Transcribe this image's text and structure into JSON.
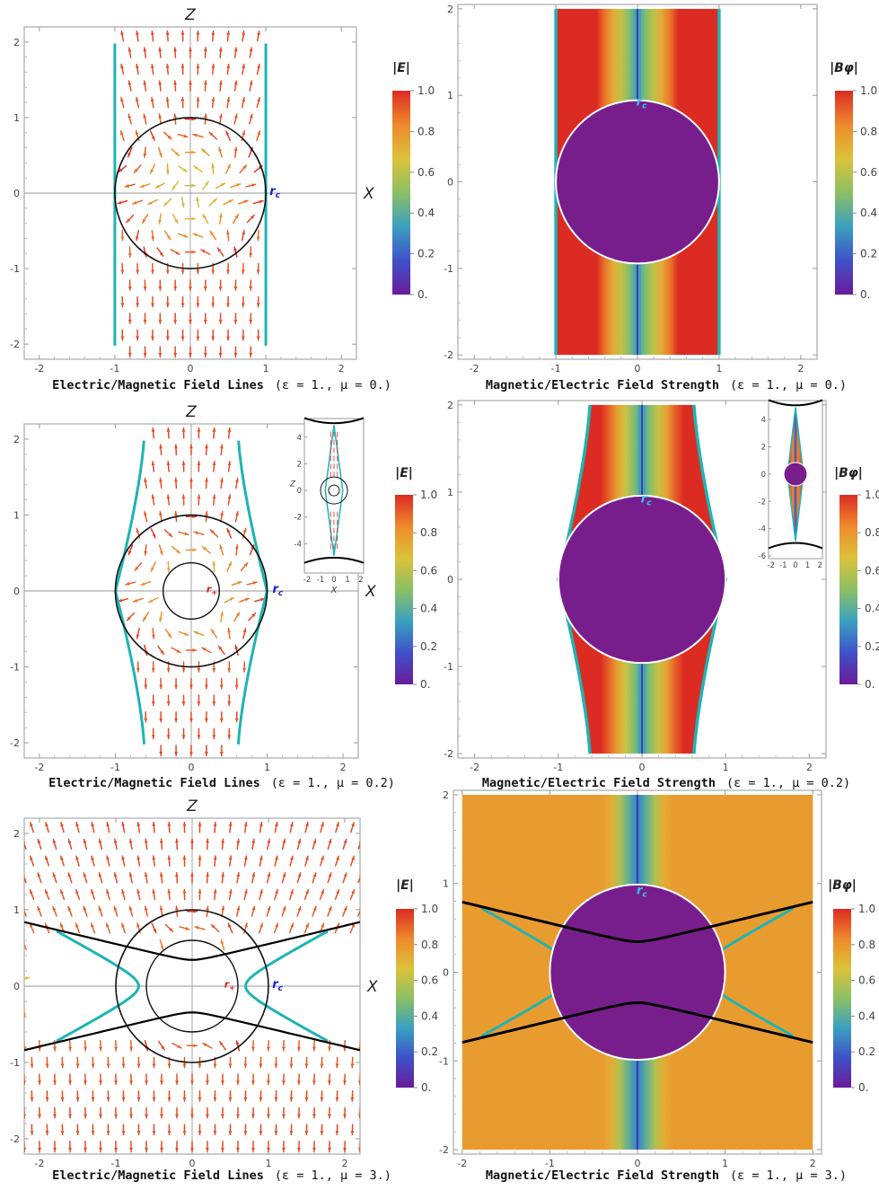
{
  "figure": {
    "panels": [
      {
        "id": "row1-left",
        "kind": "field-lines",
        "epsilon": "1.",
        "mu": "0.",
        "caption": {
          "text": "Electric/Magnetic Field Lines",
          "params": "(ε = 1.,  μ = 0.)"
        },
        "axis_top_label": "Z",
        "axis_right_label": "X",
        "rc_label": "r_c",
        "colorbar": {
          "title": "|E|",
          "ticks": [
            "1.0",
            "0.8",
            "0.6",
            "0.4",
            "0.2",
            "0."
          ]
        }
      },
      {
        "id": "row1-right",
        "kind": "field-strength",
        "epsilon": "1.",
        "mu": "0.",
        "caption": {
          "text": "Magnetic/Electric Field Strength",
          "params": "(ε = 1.,  μ = 0.)"
        },
        "rc_label": "r_c",
        "colorbar": {
          "title": "|Bφ|",
          "ticks": [
            "1.0",
            "0.8",
            "0.6",
            "0.4",
            "0.2",
            "0."
          ]
        }
      },
      {
        "id": "row2-left",
        "kind": "field-lines",
        "epsilon": "1.",
        "mu": "0.2",
        "caption": {
          "text": "Electric/Magnetic Field Lines",
          "params": "(ε = 1.,  μ = 0.2)"
        },
        "axis_top_label": "Z",
        "axis_right_label": "X",
        "rc_label": "r_c",
        "rplus_label": "r_+",
        "inset": {
          "xlabel": "X",
          "ylabel": "Z",
          "xticks": [
            "-2",
            "-1",
            "0",
            "1",
            "2"
          ],
          "yticks": [
            "4",
            "2",
            "0",
            "-2",
            "-4"
          ]
        },
        "colorbar": {
          "title": "|E|",
          "ticks": [
            "1.0",
            "0.8",
            "0.6",
            "0.4",
            "0.2",
            "0."
          ]
        }
      },
      {
        "id": "row2-right",
        "kind": "field-strength",
        "epsilon": "1.",
        "mu": "0.2",
        "caption": {
          "text": "Magnetic/Electric Field Strength",
          "params": "(ε = 1.,  μ = 0.2)"
        },
        "rc_label": "r_c",
        "inset": {
          "xticks": [
            "-2",
            "-1",
            "0",
            "1",
            "2"
          ],
          "yticks": [
            "4",
            "2",
            "0",
            "-2",
            "-4",
            "-6"
          ]
        },
        "colorbar": {
          "title": "|Bφ|",
          "ticks": [
            "1.0",
            "0.8",
            "0.6",
            "0.4",
            "0.2",
            "0."
          ]
        }
      },
      {
        "id": "row3-left",
        "kind": "field-lines",
        "epsilon": "1.",
        "mu": "3.",
        "caption": {
          "text": "Electric/Magnetic Field Lines",
          "params": "(ε = 1.,  μ = 3.)"
        },
        "axis_top_label": "Z",
        "axis_right_label": "X",
        "rc_label": "r_c",
        "rplus_label": "r_+",
        "colorbar": {
          "title": "|E|",
          "ticks": [
            "1.0",
            "0.8",
            "0.6",
            "0.4",
            "0.2",
            "0."
          ]
        }
      },
      {
        "id": "row3-right",
        "kind": "field-strength",
        "epsilon": "1.",
        "mu": "3.",
        "caption": {
          "text": "Magnetic/Electric Field Strength",
          "params": "(ε = 1.,  μ = 3.)"
        },
        "rc_label": "r_c",
        "colorbar": {
          "title": "|Bφ|",
          "ticks": [
            "1.0",
            "0.8",
            "0.6",
            "0.4",
            "0.2",
            "0."
          ]
        }
      }
    ],
    "xticks": [
      "-2",
      "-1",
      "0",
      "1",
      "2"
    ],
    "yticks": [
      "2",
      "1",
      "0",
      "-1",
      "-2"
    ]
  },
  "chart_data": [
    {
      "type": "stream",
      "panel": "row1-left",
      "xlim": [
        -2.2,
        2.2
      ],
      "ylim": [
        -2.2,
        2.2
      ],
      "grid": false,
      "colorbar": "|E|",
      "colorbar_range": [
        0,
        1
      ],
      "boundary": "vertical lines x = ±1",
      "ergo_circle_radius": 1,
      "inner_circle_radius": 0
    },
    {
      "type": "heatmap",
      "panel": "row1-right",
      "xlim": [
        -2.2,
        2.2
      ],
      "ylim": [
        -2.05,
        2.05
      ],
      "colorbar": "|Bφ|",
      "colorbar_range": [
        0,
        1
      ],
      "disk_radius": 1
    },
    {
      "type": "stream",
      "panel": "row2-left",
      "xlim": [
        -2.2,
        2.2
      ],
      "ylim": [
        -2.2,
        2.2
      ],
      "colorbar": "|E|",
      "colorbar_range": [
        0,
        1
      ],
      "ergo_circle_radius": 1,
      "inner_circle_radius": 0.37
    },
    {
      "type": "heatmap",
      "panel": "row2-right",
      "xlim": [
        -2.2,
        2.2
      ],
      "ylim": [
        -2.05,
        2.05
      ],
      "colorbar": "|Bφ|",
      "colorbar_range": [
        0,
        1
      ],
      "disk_radius": 1
    },
    {
      "type": "stream",
      "panel": "row3-left",
      "xlim": [
        -2.2,
        2.2
      ],
      "ylim": [
        -2.2,
        2.2
      ],
      "colorbar": "|E|",
      "colorbar_range": [
        0,
        1
      ],
      "ergo_circle_radius": 1,
      "inner_circle_radius": 0.6
    },
    {
      "type": "heatmap",
      "panel": "row3-right",
      "xlim": [
        -2.2,
        2.2
      ],
      "ylim": [
        -2.05,
        2.05
      ],
      "colorbar": "|Bφ|",
      "colorbar_range": [
        0,
        1
      ],
      "disk_radius": 1
    }
  ],
  "colors": {
    "boundary": "#1eb4b4",
    "disk": "#781e8c",
    "rc_left": "#1a1ad2",
    "rc_right": "#35c6e6",
    "rplus": "#d21e1e",
    "colormap": [
      "#6a1b9a",
      "#3f51c9",
      "#3aa0c0",
      "#8cc064",
      "#dcc23a",
      "#ee8a2c",
      "#dc2b22"
    ]
  }
}
